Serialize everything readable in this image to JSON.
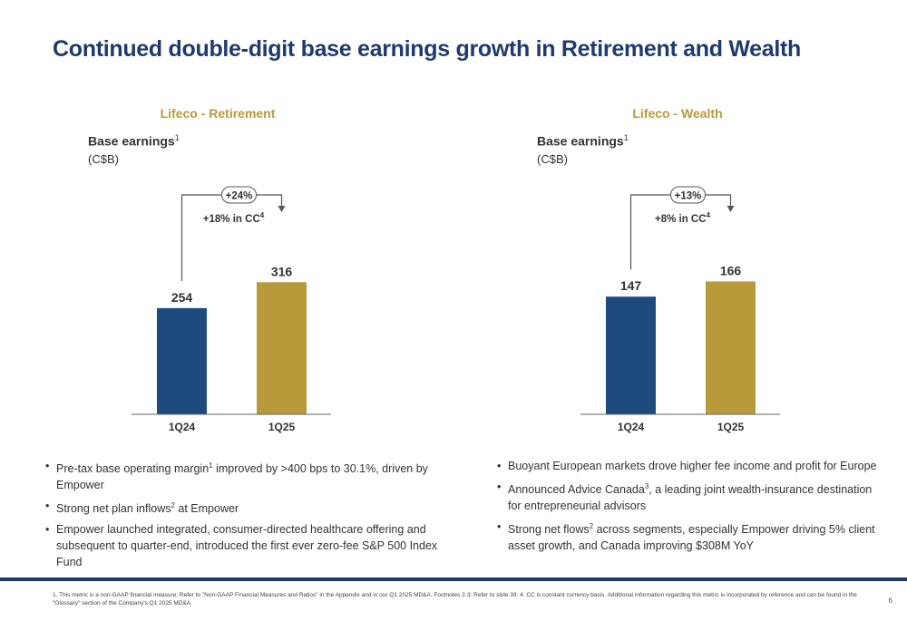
{
  "title": "Continued double-digit base earnings growth in Retirement and Wealth",
  "panels": {
    "retirement": {
      "title": "Lifeco - Retirement",
      "metric": "Base earnings",
      "metric_sup": "1",
      "unit": "(C$B)",
      "growth": "+24%",
      "cc_text": "+18% in CC",
      "cc_sup": "4"
    },
    "wealth": {
      "title": "Lifeco - Wealth",
      "metric": "Base earnings",
      "metric_sup": "1",
      "unit": "(C$B)",
      "growth": "+13%",
      "cc_text": "+8% in CC",
      "cc_sup": "4"
    }
  },
  "chart_data": [
    {
      "type": "bar",
      "title": "Lifeco - Retirement",
      "ylabel": "Base earnings (C$B)",
      "categories": [
        "1Q24",
        "1Q25"
      ],
      "values": [
        254,
        316
      ],
      "labels": [
        "254",
        "316"
      ],
      "colors": [
        "#1f4a7e",
        "#b89a3a"
      ],
      "ylim": [
        0,
        360
      ],
      "grid": false
    },
    {
      "type": "bar",
      "title": "Lifeco - Wealth",
      "ylabel": "Base earnings (C$B)",
      "categories": [
        "1Q24",
        "1Q25"
      ],
      "values": [
        147,
        166
      ],
      "labels": [
        "147",
        "166"
      ],
      "colors": [
        "#1f4a7e",
        "#b89a3a"
      ],
      "ylim": [
        0,
        188
      ],
      "grid": false
    }
  ],
  "bullets_left": [
    {
      "pre": "Pre-tax base operating margin",
      "sup": "1",
      "post": " improved by >400 bps to 30.1%, driven by Empower"
    },
    {
      "pre": "Strong net plan inflows",
      "sup": "2",
      "post": " at Empower"
    },
    {
      "pre": "Empower launched integrated, consumer-directed healthcare offering and subsequent to quarter-end, introduced the first ever zero-fee S&P 500 Index Fund",
      "sup": "",
      "post": ""
    }
  ],
  "bullets_right": [
    {
      "pre": "Buoyant European markets drove higher fee income and profit for Europe",
      "sup": "",
      "post": ""
    },
    {
      "pre": "Announced Advice Canada",
      "sup": "3",
      "post": ", a leading joint wealth-insurance destination for entrepreneurial advisors"
    },
    {
      "pre": "Strong net flows",
      "sup": "2",
      "post": " across segments, especially Empower driving 5% client asset growth, and Canada improving $308M YoY"
    }
  ],
  "footnote": "1. This metric is a non-GAAP financial measure. Refer to \"Non-GAAP Financial Measures and Ratios\" in the Appendix and in our Q1 2025 MD&A. Footnotes 2-3: Refer to slide 39. 4. CC is constant currency basis. Additional information regarding this metric is incorporated by reference and can be found in the \"Glossary\" section of the Company's Q1 2025 MD&A.",
  "page_number": "6"
}
